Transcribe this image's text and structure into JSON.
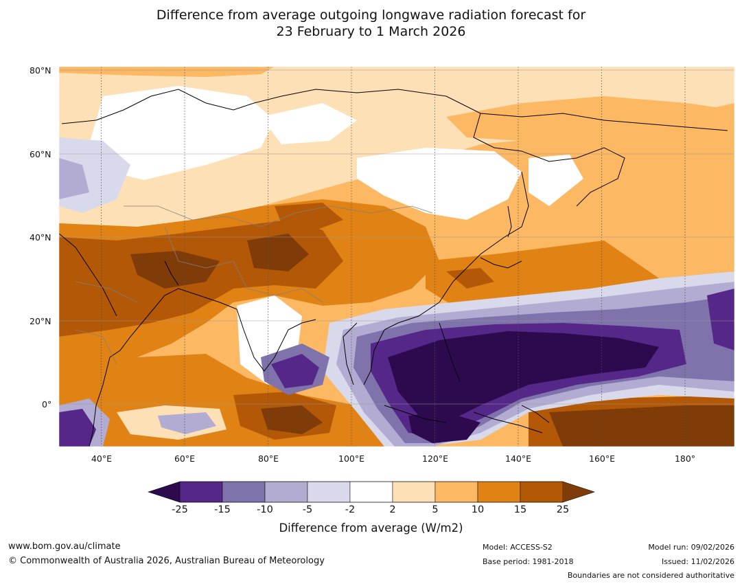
{
  "title": {
    "line1": "Difference from average outgoing longwave radiation forecast for",
    "line2": "23 February to 1 March 2026"
  },
  "axes": {
    "lat_labels": [
      "80°N",
      "60°N",
      "40°N",
      "20°N",
      "0°"
    ],
    "lon_labels": [
      "40°E",
      "60°E",
      "80°E",
      "100°E",
      "120°E",
      "140°E",
      "160°E",
      "180°"
    ]
  },
  "colorbar": {
    "ticks": [
      "-25",
      "-15",
      "-10",
      "-5",
      "-2",
      "2",
      "5",
      "10",
      "15",
      "25"
    ],
    "colors": [
      "#2d0a4e",
      "#542788",
      "#8073ac",
      "#b2abd2",
      "#d8daeb",
      "#ffffff",
      "#fee0b6",
      "#fdb863",
      "#e08214",
      "#b35806",
      "#7f3b08"
    ],
    "label": "Difference from average (W/m2)"
  },
  "footer": {
    "website": "www.bom.gov.au/climate",
    "copyright": "© Commonwealth of Australia 2026, Australian Bureau of Meteorology",
    "model": "Model: ACCESS-S2",
    "base_period": "Base period: 1981-2018",
    "model_run": "Model run: 09/02/2026",
    "issued": "Issued: 11/02/2026",
    "disclaimer": "Boundaries are not considered authoritative"
  }
}
